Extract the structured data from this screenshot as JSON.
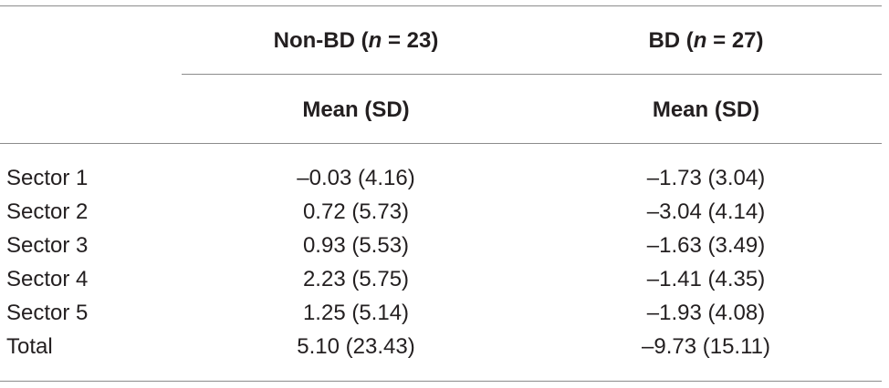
{
  "header": {
    "col1": {
      "label": "Non-BD (",
      "n_symbol": "n",
      "n_rest": " = 23)"
    },
    "col2": {
      "label": "BD (",
      "n_symbol": "n",
      "n_rest": " = 27)"
    },
    "sub1": "Mean (SD)",
    "sub2": "Mean (SD)"
  },
  "rows": [
    {
      "label": "Sector 1",
      "non_bd": "–0.03 (4.16)",
      "bd": "–1.73 (3.04)"
    },
    {
      "label": "Sector 2",
      "non_bd": "0.72 (5.73)",
      "bd": "–3.04 (4.14)"
    },
    {
      "label": "Sector 3",
      "non_bd": "0.93 (5.53)",
      "bd": "–1.63 (3.49)"
    },
    {
      "label": "Sector 4",
      "non_bd": "2.23 (5.75)",
      "bd": "–1.41 (4.35)"
    },
    {
      "label": "Sector 5",
      "non_bd": "1.25 (5.14)",
      "bd": "–1.93 (4.08)"
    },
    {
      "label": "Total",
      "non_bd": "5.10 (23.43)",
      "bd": "–9.73 (15.11)"
    }
  ]
}
